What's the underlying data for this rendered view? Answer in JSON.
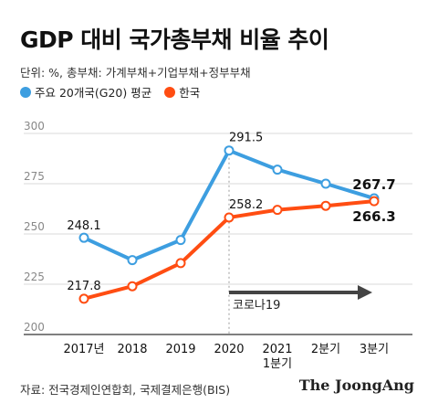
{
  "title": "GDP 대비 국가총부채 비율 추이",
  "unit_note": "단위: %, 총부채: 가계부채+기업부채+정부부채",
  "source": "자료: 전국경제인연합회, 국제결제은행(BIS)",
  "brand": "The JoongAng",
  "colors": {
    "g20": "#3d9ee0",
    "korea": "#ff4d12",
    "grid": "#d8d8d8",
    "arrow": "#444444"
  },
  "annotation": {
    "label": "코로나19"
  },
  "chart_data": {
    "type": "line",
    "categories": [
      "2017년",
      "2018",
      "2019",
      "2020",
      "2021\n1분기",
      "2분기",
      "3분기"
    ],
    "ylim": [
      200,
      300
    ],
    "yticks": [
      200,
      225,
      250,
      275,
      300
    ],
    "grid": true,
    "legend_position": "top-left",
    "series": [
      {
        "name": "주요 20개국(G20) 평균",
        "color": "#3d9ee0",
        "values": [
          248.1,
          237.0,
          247.0,
          291.5,
          282.0,
          275.0,
          267.7
        ],
        "labels": [
          "248.1",
          "",
          "",
          "291.5",
          "",
          "",
          "267.7"
        ]
      },
      {
        "name": "한국",
        "color": "#ff4d12",
        "values": [
          217.8,
          224.0,
          235.5,
          258.2,
          262.0,
          264.0,
          266.3
        ],
        "labels": [
          "217.8",
          "",
          "",
          "258.2",
          "",
          "",
          "266.3"
        ]
      }
    ]
  }
}
